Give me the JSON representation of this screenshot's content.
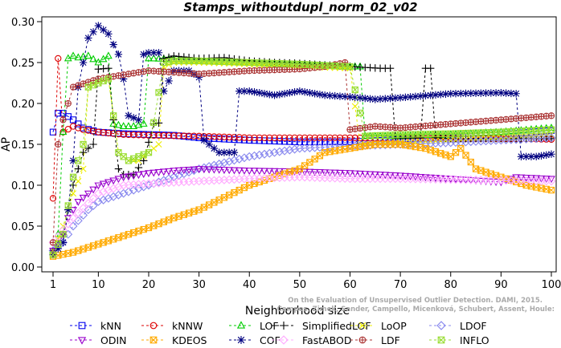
{
  "chart_data": {
    "type": "line",
    "title": "Stamps_withoutdupl_norm_02_v02",
    "xlabel": "Neighborhood size",
    "ylabel": "AP",
    "xlim": [
      1,
      100
    ],
    "ylim": [
      0,
      0.3
    ],
    "xticks": [
      1,
      10,
      20,
      30,
      40,
      50,
      60,
      70,
      80,
      90,
      100
    ],
    "yticks": [
      0.0,
      0.05,
      0.1,
      0.15,
      0.2,
      0.25,
      0.3
    ],
    "grid": false,
    "legend_position": "bottom",
    "watermark": "Campos, Zimek, Sander, Campello, Micenková, Schubert, Assent, Houle:\nOn the Evaluation of Unsupervised Outlier Detection. DAMI, 2015.",
    "series": [
      {
        "name": "kNN",
        "color": "#0000ee",
        "marker": "square",
        "anchors": [
          [
            1,
            0.165
          ],
          [
            2,
            0.188
          ],
          [
            3,
            0.188
          ],
          [
            5,
            0.18
          ],
          [
            7,
            0.17
          ],
          [
            10,
            0.165
          ],
          [
            15,
            0.163
          ],
          [
            20,
            0.162
          ],
          [
            25,
            0.161
          ],
          [
            30,
            0.158
          ],
          [
            40,
            0.155
          ],
          [
            50,
            0.153
          ],
          [
            60,
            0.153
          ],
          [
            70,
            0.156
          ],
          [
            80,
            0.158
          ],
          [
            90,
            0.162
          ],
          [
            100,
            0.167
          ]
        ]
      },
      {
        "name": "kNNW",
        "color": "#dd0000",
        "marker": "circle",
        "anchors": [
          [
            1,
            0.084
          ],
          [
            2,
            0.255
          ],
          [
            3,
            0.165
          ],
          [
            5,
            0.172
          ],
          [
            7,
            0.168
          ],
          [
            10,
            0.165
          ],
          [
            15,
            0.162
          ],
          [
            20,
            0.161
          ],
          [
            30,
            0.16
          ],
          [
            40,
            0.158
          ],
          [
            50,
            0.158
          ],
          [
            60,
            0.158
          ],
          [
            70,
            0.157
          ],
          [
            80,
            0.157
          ],
          [
            90,
            0.157
          ],
          [
            100,
            0.156
          ]
        ]
      },
      {
        "name": "LOF",
        "color": "#00cc00",
        "marker": "triangle-up",
        "anchors": [
          [
            1,
            0.02
          ],
          [
            2,
            0.04
          ],
          [
            3,
            0.165
          ],
          [
            4,
            0.255
          ],
          [
            5,
            0.258
          ],
          [
            6,
            0.256
          ],
          [
            8,
            0.258
          ],
          [
            10,
            0.25
          ],
          [
            12,
            0.258
          ],
          [
            13,
            0.175
          ],
          [
            15,
            0.172
          ],
          [
            17,
            0.172
          ],
          [
            19,
            0.175
          ],
          [
            20,
            0.255
          ],
          [
            25,
            0.254
          ],
          [
            30,
            0.252
          ],
          [
            40,
            0.25
          ],
          [
            50,
            0.248
          ],
          [
            60,
            0.245
          ],
          [
            62,
            0.245
          ],
          [
            63,
            0.16
          ],
          [
            70,
            0.16
          ],
          [
            80,
            0.162
          ],
          [
            90,
            0.165
          ],
          [
            100,
            0.17
          ]
        ]
      },
      {
        "name": "SimplifiedLOF",
        "color": "#000000",
        "marker": "plus",
        "anchors": [
          [
            1,
            0.02
          ],
          [
            3,
            0.04
          ],
          [
            5,
            0.1
          ],
          [
            7,
            0.14
          ],
          [
            9,
            0.15
          ],
          [
            10,
            0.242
          ],
          [
            12,
            0.243
          ],
          [
            13,
            0.18
          ],
          [
            14,
            0.12
          ],
          [
            15,
            0.113
          ],
          [
            17,
            0.113
          ],
          [
            19,
            0.13
          ],
          [
            21,
            0.175
          ],
          [
            22,
            0.176
          ],
          [
            23,
            0.255
          ],
          [
            25,
            0.258
          ],
          [
            30,
            0.255
          ],
          [
            35,
            0.256
          ],
          [
            40,
            0.252
          ],
          [
            45,
            0.25
          ],
          [
            50,
            0.249
          ],
          [
            55,
            0.247
          ],
          [
            60,
            0.245
          ],
          [
            66,
            0.243
          ],
          [
            68,
            0.243
          ],
          [
            69,
            0.158
          ],
          [
            74,
            0.158
          ],
          [
            75,
            0.243
          ],
          [
            76,
            0.243
          ],
          [
            77,
            0.158
          ],
          [
            80,
            0.157
          ],
          [
            90,
            0.157
          ],
          [
            100,
            0.157
          ]
        ]
      },
      {
        "name": "LoOP",
        "color": "#eeee00",
        "marker": "x",
        "anchors": [
          [
            1,
            0.02
          ],
          [
            3,
            0.05
          ],
          [
            5,
            0.09
          ],
          [
            7,
            0.12
          ],
          [
            8,
            0.22
          ],
          [
            10,
            0.225
          ],
          [
            12,
            0.23
          ],
          [
            14,
            0.14
          ],
          [
            16,
            0.13
          ],
          [
            18,
            0.13
          ],
          [
            20,
            0.14
          ],
          [
            22,
            0.15
          ],
          [
            23,
            0.245
          ],
          [
            25,
            0.25
          ],
          [
            30,
            0.25
          ],
          [
            40,
            0.248
          ],
          [
            50,
            0.245
          ],
          [
            60,
            0.243
          ],
          [
            62,
            0.15
          ],
          [
            70,
            0.152
          ],
          [
            80,
            0.155
          ],
          [
            90,
            0.158
          ],
          [
            100,
            0.162
          ]
        ]
      },
      {
        "name": "LDOF",
        "color": "#8888ee",
        "marker": "diamond",
        "anchors": [
          [
            1,
            0.02
          ],
          [
            3,
            0.03
          ],
          [
            5,
            0.05
          ],
          [
            8,
            0.07
          ],
          [
            10,
            0.08
          ],
          [
            15,
            0.09
          ],
          [
            20,
            0.1
          ],
          [
            30,
            0.12
          ],
          [
            40,
            0.135
          ],
          [
            50,
            0.145
          ],
          [
            60,
            0.148
          ],
          [
            70,
            0.15
          ],
          [
            80,
            0.152
          ],
          [
            90,
            0.155
          ],
          [
            100,
            0.158
          ]
        ]
      },
      {
        "name": "ODIN",
        "color": "#9900cc",
        "marker": "triangle-down",
        "anchors": [
          [
            1,
            0.02
          ],
          [
            2,
            0.025
          ],
          [
            3,
            0.04
          ],
          [
            4,
            0.06
          ],
          [
            6,
            0.08
          ],
          [
            8,
            0.09
          ],
          [
            10,
            0.1
          ],
          [
            15,
            0.11
          ],
          [
            20,
            0.115
          ],
          [
            25,
            0.118
          ],
          [
            30,
            0.12
          ],
          [
            40,
            0.118
          ],
          [
            50,
            0.117
          ],
          [
            60,
            0.115
          ],
          [
            70,
            0.112
          ],
          [
            80,
            0.108
          ],
          [
            90,
            0.104
          ],
          [
            93,
            0.11
          ],
          [
            100,
            0.108
          ]
        ]
      },
      {
        "name": "KDEOS",
        "color": "#ffaa00",
        "marker": "square-x",
        "anchors": [
          [
            1,
            0.013
          ],
          [
            5,
            0.018
          ],
          [
            10,
            0.028
          ],
          [
            15,
            0.038
          ],
          [
            20,
            0.048
          ],
          [
            25,
            0.06
          ],
          [
            30,
            0.07
          ],
          [
            35,
            0.085
          ],
          [
            40,
            0.1
          ],
          [
            45,
            0.11
          ],
          [
            50,
            0.12
          ],
          [
            55,
            0.14
          ],
          [
            60,
            0.145
          ],
          [
            65,
            0.15
          ],
          [
            70,
            0.15
          ],
          [
            75,
            0.145
          ],
          [
            80,
            0.135
          ],
          [
            82,
            0.145
          ],
          [
            85,
            0.12
          ],
          [
            90,
            0.11
          ],
          [
            95,
            0.1
          ],
          [
            100,
            0.094
          ]
        ]
      },
      {
        "name": "COF",
        "color": "#000080",
        "marker": "asterisk",
        "anchors": [
          [
            1,
            0.015
          ],
          [
            3,
            0.03
          ],
          [
            4,
            0.07
          ],
          [
            5,
            0.13
          ],
          [
            6,
            0.22
          ],
          [
            7,
            0.25
          ],
          [
            8,
            0.28
          ],
          [
            10,
            0.295
          ],
          [
            12,
            0.285
          ],
          [
            13,
            0.272
          ],
          [
            14,
            0.26
          ],
          [
            15,
            0.23
          ],
          [
            16,
            0.185
          ],
          [
            18,
            0.18
          ],
          [
            19,
            0.26
          ],
          [
            20,
            0.262
          ],
          [
            22,
            0.262
          ],
          [
            23,
            0.215
          ],
          [
            25,
            0.24
          ],
          [
            28,
            0.24
          ],
          [
            30,
            0.232
          ],
          [
            31,
            0.155
          ],
          [
            34,
            0.14
          ],
          [
            37,
            0.14
          ],
          [
            38,
            0.215
          ],
          [
            40,
            0.215
          ],
          [
            45,
            0.21
          ],
          [
            50,
            0.215
          ],
          [
            55,
            0.21
          ],
          [
            60,
            0.208
          ],
          [
            65,
            0.205
          ],
          [
            70,
            0.207
          ],
          [
            80,
            0.212
          ],
          [
            90,
            0.213
          ],
          [
            93,
            0.212
          ],
          [
            94,
            0.135
          ],
          [
            97,
            0.135
          ],
          [
            100,
            0.138
          ]
        ]
      },
      {
        "name": "FastABOD",
        "color": "#ffaaff",
        "marker": "diamond-open",
        "anchors": [
          [
            1,
            0.03
          ],
          [
            5,
            0.06
          ],
          [
            10,
            0.09
          ],
          [
            15,
            0.1
          ],
          [
            20,
            0.102
          ],
          [
            30,
            0.105
          ],
          [
            40,
            0.108
          ],
          [
            50,
            0.11
          ],
          [
            60,
            0.108
          ],
          [
            70,
            0.108
          ],
          [
            80,
            0.107
          ],
          [
            90,
            0.106
          ],
          [
            100,
            0.105
          ]
        ]
      },
      {
        "name": "LDF",
        "color": "#aa3333",
        "marker": "circle-plus",
        "anchors": [
          [
            1,
            0.03
          ],
          [
            2,
            0.15
          ],
          [
            3,
            0.18
          ],
          [
            4,
            0.2
          ],
          [
            5,
            0.22
          ],
          [
            10,
            0.23
          ],
          [
            15,
            0.235
          ],
          [
            20,
            0.24
          ],
          [
            25,
            0.238
          ],
          [
            30,
            0.236
          ],
          [
            40,
            0.24
          ],
          [
            50,
            0.242
          ],
          [
            55,
            0.245
          ],
          [
            59,
            0.25
          ],
          [
            60,
            0.168
          ],
          [
            65,
            0.172
          ],
          [
            70,
            0.17
          ],
          [
            80,
            0.175
          ],
          [
            90,
            0.18
          ],
          [
            100,
            0.185
          ]
        ]
      },
      {
        "name": "INFLO",
        "color": "#99dd33",
        "marker": "square-x",
        "anchors": [
          [
            1,
            0.015
          ],
          [
            3,
            0.04
          ],
          [
            5,
            0.11
          ],
          [
            7,
            0.15
          ],
          [
            8,
            0.22
          ],
          [
            10,
            0.225
          ],
          [
            12,
            0.23
          ],
          [
            14,
            0.14
          ],
          [
            16,
            0.13
          ],
          [
            20,
            0.14
          ],
          [
            23,
            0.25
          ],
          [
            25,
            0.252
          ],
          [
            30,
            0.252
          ],
          [
            40,
            0.25
          ],
          [
            50,
            0.248
          ],
          [
            60,
            0.245
          ],
          [
            63,
            0.16
          ],
          [
            70,
            0.162
          ],
          [
            80,
            0.163
          ],
          [
            90,
            0.165
          ],
          [
            100,
            0.168
          ]
        ]
      }
    ]
  }
}
